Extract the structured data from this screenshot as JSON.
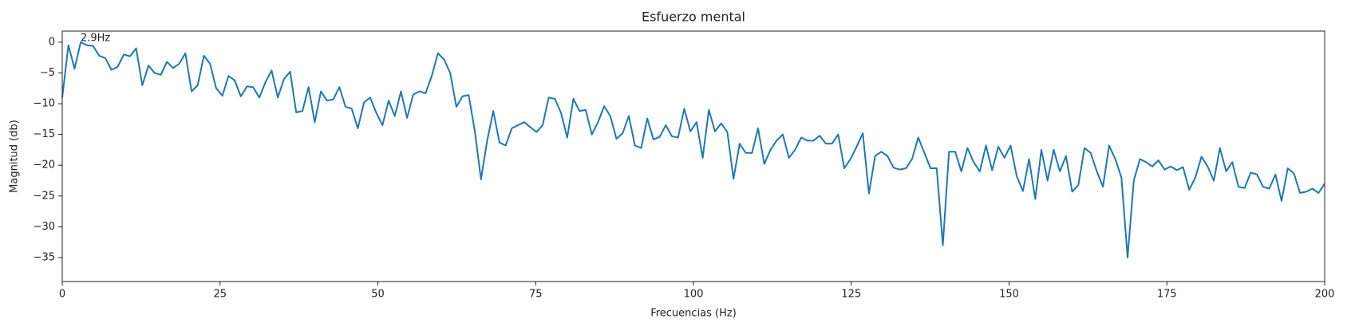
{
  "chart_data": {
    "type": "line",
    "title": "Esfuerzo mental",
    "x_label": "Frecuencias (Hz)",
    "y_label": "Magnitud (db)",
    "x": [
      0,
      0.98,
      1.95,
      2.93,
      3.9,
      4.88,
      5.85,
      6.83,
      7.8,
      8.78,
      9.76,
      10.73,
      11.71,
      12.68,
      13.66,
      14.63,
      15.61,
      16.59,
      17.56,
      18.54,
      19.51,
      20.49,
      21.46,
      22.44,
      23.41,
      24.39,
      25.37,
      26.34,
      27.32,
      28.29,
      29.27,
      30.24,
      31.22,
      32.2,
      33.17,
      34.15,
      35.12,
      36.1,
      37.07,
      38.05,
      39.02,
      40.0,
      40.98,
      41.95,
      42.93,
      43.9,
      44.88,
      45.85,
      46.83,
      47.8,
      48.78,
      49.76,
      50.73,
      51.71,
      52.68,
      53.66,
      54.63,
      55.61,
      56.59,
      57.56,
      58.54,
      59.51,
      60.49,
      61.46,
      62.44,
      63.41,
      64.39,
      65.37,
      66.34,
      67.32,
      68.29,
      69.27,
      70.24,
      71.22,
      72.2,
      73.17,
      74.15,
      75.12,
      76.1,
      77.07,
      78.05,
      79.02,
      80.0,
      80.98,
      81.95,
      82.93,
      83.9,
      84.88,
      85.85,
      86.83,
      87.8,
      88.78,
      89.76,
      90.73,
      91.71,
      92.68,
      93.66,
      94.63,
      95.61,
      96.59,
      97.56,
      98.54,
      99.51,
      100.49,
      101.46,
      102.44,
      103.41,
      104.39,
      105.37,
      106.34,
      107.32,
      108.29,
      109.27,
      110.24,
      111.22,
      112.2,
      113.17,
      114.15,
      115.12,
      116.1,
      117.07,
      118.05,
      119.02,
      120.0,
      120.98,
      121.95,
      122.93,
      123.9,
      124.88,
      125.85,
      126.83,
      127.8,
      128.78,
      129.76,
      130.73,
      131.71,
      132.68,
      133.66,
      134.63,
      135.61,
      136.59,
      137.56,
      138.54,
      139.51,
      140.49,
      141.46,
      142.44,
      143.41,
      144.39,
      145.37,
      146.34,
      147.32,
      148.29,
      149.27,
      150.24,
      151.22,
      152.2,
      153.17,
      154.15,
      155.12,
      156.1,
      157.07,
      158.05,
      159.02,
      160.0,
      160.98,
      161.95,
      162.93,
      163.9,
      164.88,
      165.85,
      166.83,
      167.8,
      168.78,
      169.76,
      170.73,
      171.71,
      172.68,
      173.66,
      174.63,
      175.61,
      176.59,
      177.56,
      178.54,
      179.51,
      180.49,
      181.46,
      182.44,
      183.41,
      184.39,
      185.37,
      186.34,
      187.32,
      188.29,
      189.27,
      190.24,
      191.22,
      192.2,
      193.17,
      194.15,
      195.12,
      196.1,
      197.07,
      198.05,
      199.02,
      200.0
    ],
    "series": [
      {
        "color": "#1f77b4",
        "values": [
          -9,
          -0.5,
          -4.3,
          0,
          -0.5,
          -0.6,
          -2.2,
          -2.6,
          -4.5,
          -4,
          -2,
          -2.3,
          -1,
          -7,
          -3.8,
          -5,
          -5.3,
          -3.2,
          -4.2,
          -3.5,
          -1.8,
          -8,
          -7,
          -2.2,
          -3.5,
          -7.5,
          -8.7,
          -5.5,
          -6.2,
          -8.8,
          -7.2,
          -7.3,
          -9,
          -6.5,
          -4.6,
          -9,
          -6,
          -4.8,
          -11.4,
          -11.2,
          -7.3,
          -13,
          -8,
          -9.5,
          -9.3,
          -7.3,
          -10.5,
          -10.8,
          -14,
          -9.8,
          -9,
          -11.5,
          -13.5,
          -9.5,
          -12,
          -8,
          -12.3,
          -8.5,
          -8,
          -8.3,
          -5.5,
          -1.8,
          -2.8,
          -5,
          -10.5,
          -8.8,
          -8.6,
          -14.5,
          -22.3,
          -16,
          -11.2,
          -16.3,
          -16.8,
          -14,
          -13.5,
          -13,
          -13.8,
          -14.6,
          -13.5,
          -9,
          -9.2,
          -11.5,
          -15.5,
          -9.2,
          -11.2,
          -11,
          -15,
          -13,
          -10.4,
          -12,
          -15.7,
          -14.8,
          -12,
          -16.8,
          -17.2,
          -12.4,
          -15.8,
          -15.4,
          -13.5,
          -15.3,
          -15.5,
          -10.8,
          -14.5,
          -13,
          -18.8,
          -11,
          -14.5,
          -13.2,
          -14.6,
          -22.2,
          -16.5,
          -18,
          -18,
          -14,
          -19.8,
          -17.5,
          -16,
          -15,
          -18.8,
          -17.5,
          -15.5,
          -16,
          -16,
          -15.2,
          -16.5,
          -16.5,
          -15,
          -20.5,
          -19,
          -17,
          -14.8,
          -24.6,
          -18.5,
          -17.8,
          -18.5,
          -20.4,
          -20.7,
          -20.5,
          -19,
          -15.5,
          -18,
          -20.5,
          -20.5,
          -33,
          -17.8,
          -17.8,
          -21,
          -17.2,
          -19.5,
          -21,
          -16.8,
          -20.8,
          -17,
          -18.8,
          -16.8,
          -21.8,
          -24.2,
          -19,
          -25.5,
          -17.5,
          -22.5,
          -17.5,
          -21,
          -18.5,
          -24.3,
          -23.2,
          -17.2,
          -18,
          -21,
          -23.5,
          -16.8,
          -19,
          -22,
          -35,
          -22.5,
          -19,
          -19.5,
          -20.2,
          -19.2,
          -20.7,
          -20.2,
          -20.8,
          -20.3,
          -24,
          -22,
          -18.6,
          -20.2,
          -22.5,
          -17.2,
          -21,
          -19.5,
          -23.5,
          -23.7,
          -21.2,
          -21.5,
          -23.5,
          -23.8,
          -21.5,
          -25.8,
          -20.5,
          -21.3,
          -24.5,
          -24.3,
          -23.8,
          -24.5,
          -23
        ]
      }
    ],
    "annotations": [
      {
        "text": "2.9Hz",
        "x": 2.9,
        "y": 0
      }
    ],
    "xlim": [
      0,
      200
    ],
    "xticks": [
      0,
      25,
      50,
      75,
      100,
      125,
      150,
      175,
      200
    ],
    "ylim": [
      -38.9,
      1.8
    ],
    "yticks": [
      0,
      {
        "value": -5,
        "label": "−5"
      },
      {
        "value": -10,
        "label": "−10"
      },
      {
        "value": -15,
        "label": "−15"
      },
      {
        "value": -20,
        "label": "−20"
      },
      {
        "value": -25,
        "label": "−25"
      },
      {
        "value": -30,
        "label": "−30"
      },
      {
        "value": -35,
        "label": "−35"
      }
    ],
    "grid": false
  }
}
